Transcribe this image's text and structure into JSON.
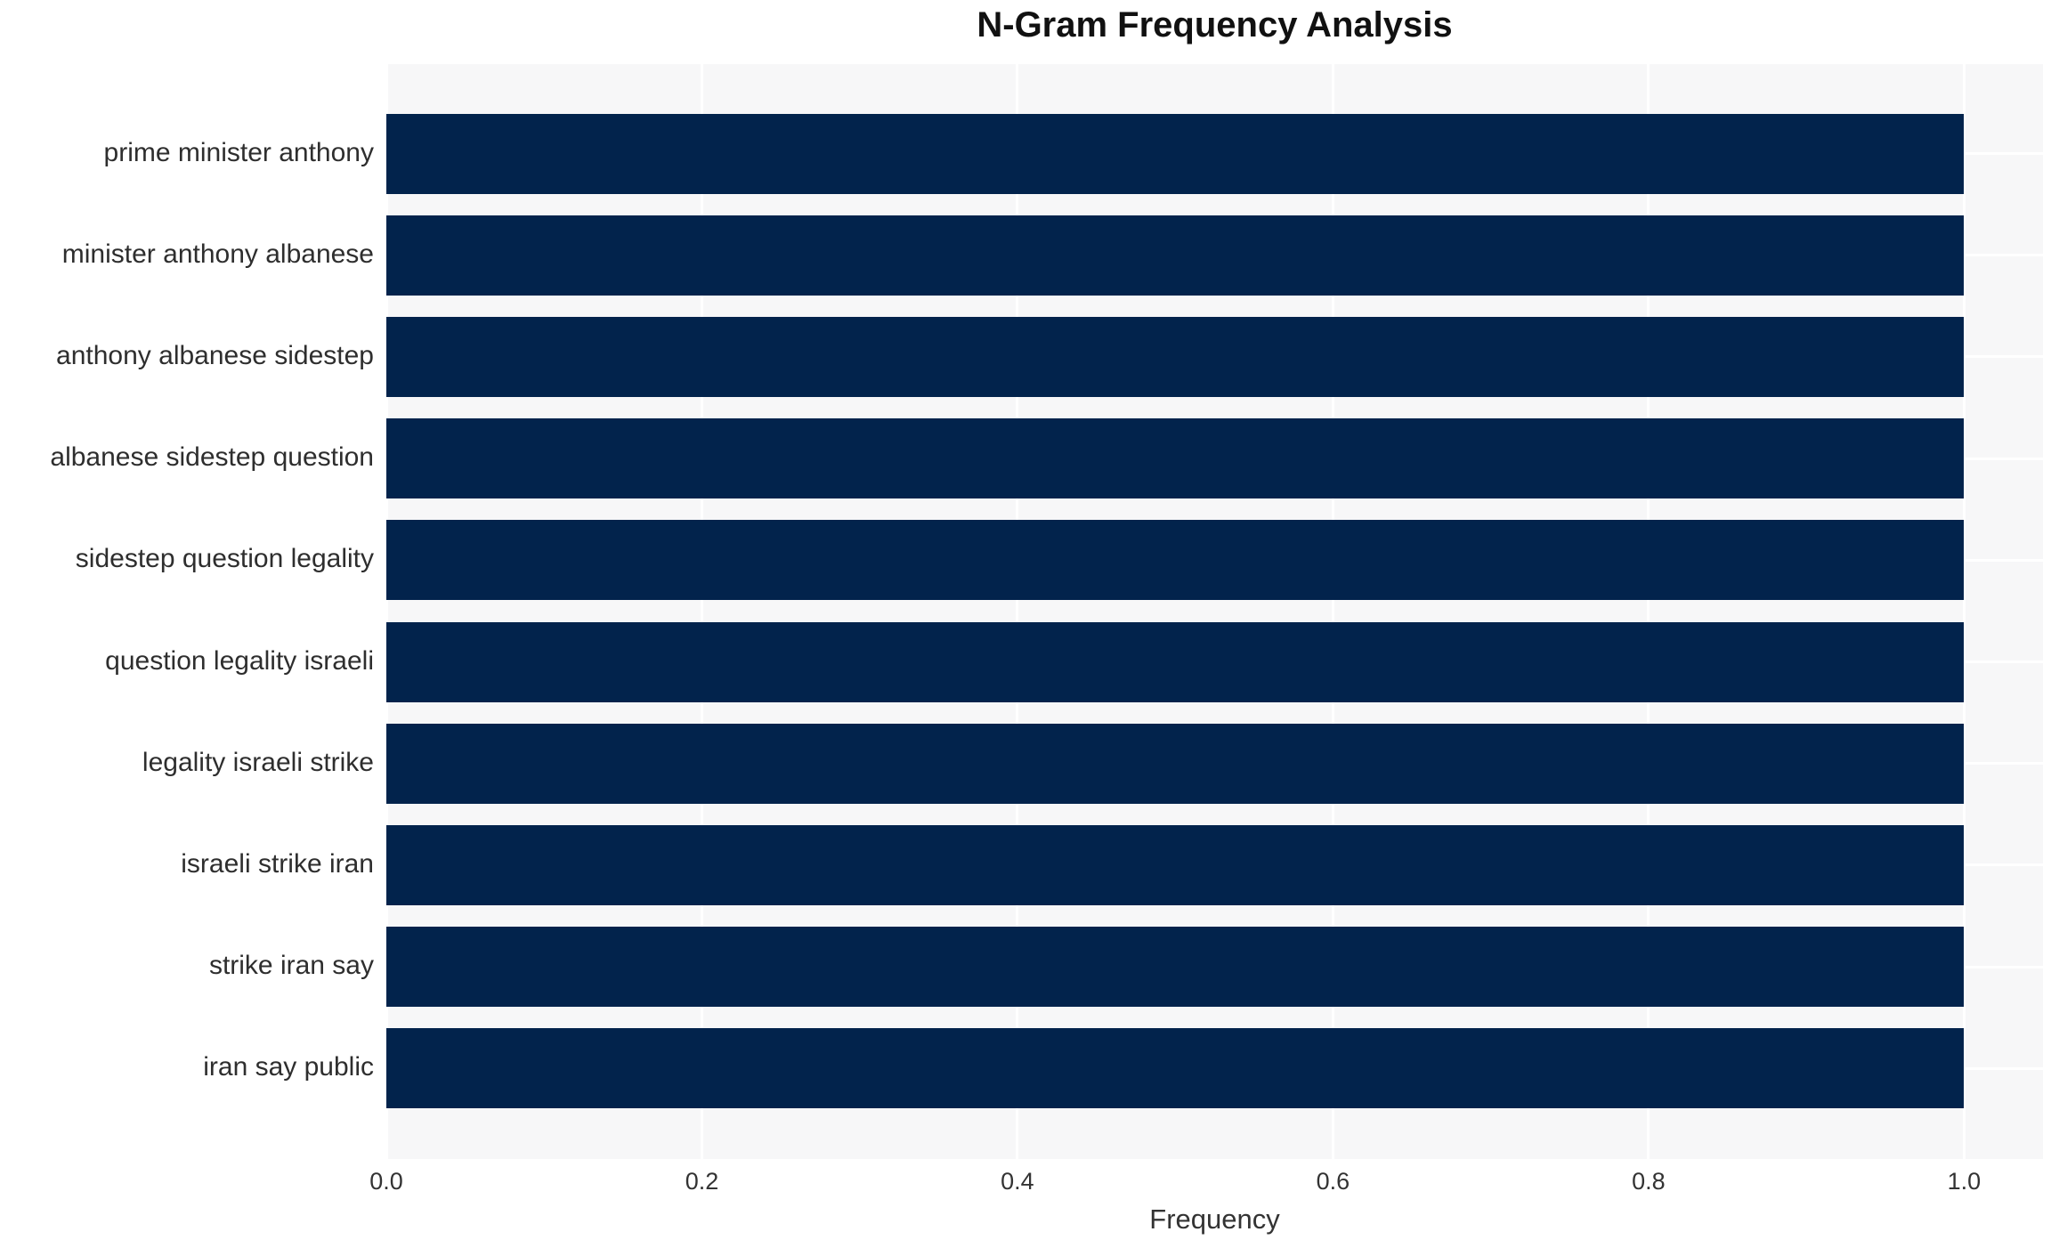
{
  "chart_data": {
    "type": "bar",
    "orientation": "horizontal",
    "title": "N-Gram Frequency Analysis",
    "xlabel": "Frequency",
    "ylabel": "",
    "categories": [
      "prime minister anthony",
      "minister anthony albanese",
      "anthony albanese sidestep",
      "albanese sidestep question",
      "sidestep question legality",
      "question legality israeli",
      "legality israeli strike",
      "israeli strike iran",
      "strike iran say",
      "iran say public"
    ],
    "values": [
      1.0,
      1.0,
      1.0,
      1.0,
      1.0,
      1.0,
      1.0,
      1.0,
      1.0,
      1.0
    ],
    "xticks": [
      0.0,
      0.2,
      0.4,
      0.6,
      0.8,
      1.0
    ],
    "xtick_labels": [
      "0.0",
      "0.2",
      "0.4",
      "0.6",
      "0.8",
      "1.0"
    ],
    "xlim": [
      0,
      1.05
    ],
    "grid": true,
    "legend": false,
    "colors": {
      "bar": "#02234C",
      "plot_background": "#F7F7F8",
      "gridline": "#FFFFFF",
      "tick_text": "#333333",
      "label_text": "#2E2E2E",
      "title_text": "#111111"
    }
  }
}
